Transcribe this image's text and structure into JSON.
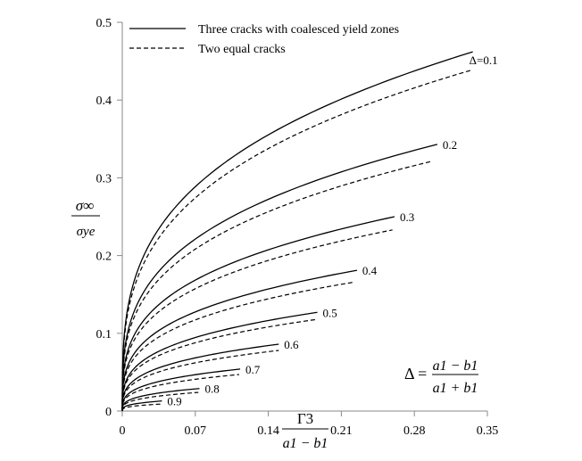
{
  "chart_data": {
    "type": "line",
    "title": "",
    "xlabel": {
      "numerator": "Γ3",
      "denominator": "a1 − b1"
    },
    "ylabel": {
      "numerator": "σ∞",
      "denominator": "σye"
    },
    "xlim": [
      0,
      0.35
    ],
    "ylim": [
      0,
      0.5
    ],
    "xticks": [
      "0",
      "0.07",
      "0.14",
      "0.21",
      "0.28",
      "0.35"
    ],
    "xtick_values": [
      0,
      0.07,
      0.14,
      0.21,
      0.28,
      0.35
    ],
    "yticks": [
      "0",
      "0.1",
      "0.2",
      "0.3",
      "0.4",
      "0.5"
    ],
    "ytick_values": [
      0,
      0.1,
      0.2,
      0.3,
      0.4,
      0.5
    ],
    "grid": false,
    "legend_position": "top-left",
    "legend": [
      {
        "label": "Three cracks with coalesced yield zones",
        "style": "solid"
      },
      {
        "label": "Two equal cracks",
        "style": "dashed"
      }
    ],
    "formula": {
      "lhs": "Δ =",
      "numerator": "a1 − b1",
      "denominator": "a1 + b1"
    },
    "curve_model_exponent": 0.3,
    "series": [
      {
        "delta_label": "Δ=0.1",
        "solid_end": [
          0.336,
          0.462
        ],
        "dashed_end": [
          0.336,
          0.439
        ]
      },
      {
        "delta_label": "0.2",
        "solid_end": [
          0.302,
          0.343
        ],
        "dashed_end": [
          0.296,
          0.321
        ]
      },
      {
        "delta_label": "0.3",
        "solid_end": [
          0.261,
          0.25
        ],
        "dashed_end": [
          0.259,
          0.233
        ]
      },
      {
        "delta_label": "0.4",
        "solid_end": [
          0.225,
          0.181
        ],
        "dashed_end": [
          0.223,
          0.166
        ]
      },
      {
        "delta_label": "0.5",
        "solid_end": [
          0.187,
          0.127
        ],
        "dashed_end": [
          0.187,
          0.118
        ]
      },
      {
        "delta_label": "0.6",
        "solid_end": [
          0.15,
          0.086
        ],
        "dashed_end": [
          0.15,
          0.078
        ]
      },
      {
        "delta_label": "0.7",
        "solid_end": [
          0.113,
          0.054
        ],
        "dashed_end": [
          0.112,
          0.047
        ]
      },
      {
        "delta_label": "0.8",
        "solid_end": [
          0.074,
          0.029
        ],
        "dashed_end": [
          0.073,
          0.024
        ]
      },
      {
        "delta_label": "0.9",
        "solid_end": [
          0.038,
          0.013
        ],
        "dashed_end": [
          0.037,
          0.009
        ]
      }
    ]
  }
}
